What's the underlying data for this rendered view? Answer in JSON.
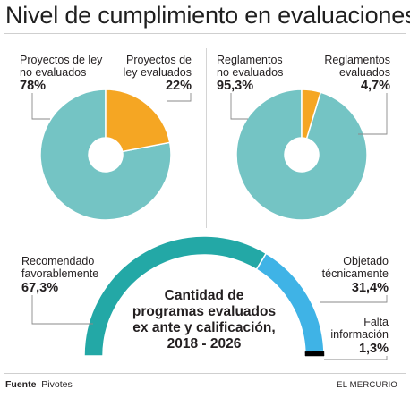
{
  "title": "Nivel de cumplimiento en evaluaciones",
  "colors": {
    "teal": "#74c4c4",
    "orange": "#f5a623",
    "arc_teal": "#23a8a6",
    "arc_blue": "#3fb3e6",
    "arc_black": "#000000"
  },
  "chart_data": [
    {
      "type": "pie",
      "slices": [
        {
          "label_lines": [
            "Proyectos de ley",
            "no evaluados"
          ],
          "value": 78,
          "display": "78%",
          "color": "#74c4c4"
        },
        {
          "label_lines": [
            "Proyectos de",
            "ley evaluados"
          ],
          "value": 22,
          "display": "22%",
          "color": "#f5a623"
        }
      ]
    },
    {
      "type": "pie",
      "slices": [
        {
          "label_lines": [
            "Reglamentos",
            "no evaluados"
          ],
          "value": 95.3,
          "display": "95,3%",
          "color": "#74c4c4"
        },
        {
          "label_lines": [
            "Reglamentos",
            "evaluados"
          ],
          "value": 4.7,
          "display": "4,7%",
          "color": "#f5a623"
        }
      ]
    },
    {
      "type": "pie",
      "subtype": "semicircle",
      "center_label": [
        "Cantidad de",
        "programas evaluados",
        "ex ante y calificación,",
        "2018 - 2026"
      ],
      "slices": [
        {
          "label_lines": [
            "Recomendado",
            "favorablemente"
          ],
          "value": 67.3,
          "display": "67,3%",
          "color": "#23a8a6"
        },
        {
          "label_lines": [
            "Objetado",
            "técnicamente"
          ],
          "value": 31.4,
          "display": "31,4%",
          "color": "#3fb3e6"
        },
        {
          "label_lines": [
            "Falta",
            "información"
          ],
          "value": 1.3,
          "display": "1,3%",
          "color": "#000000"
        }
      ]
    }
  ],
  "footer": {
    "source_label": "Fuente",
    "source_value": "Pivotes",
    "brand": "EL MERCURIO"
  }
}
